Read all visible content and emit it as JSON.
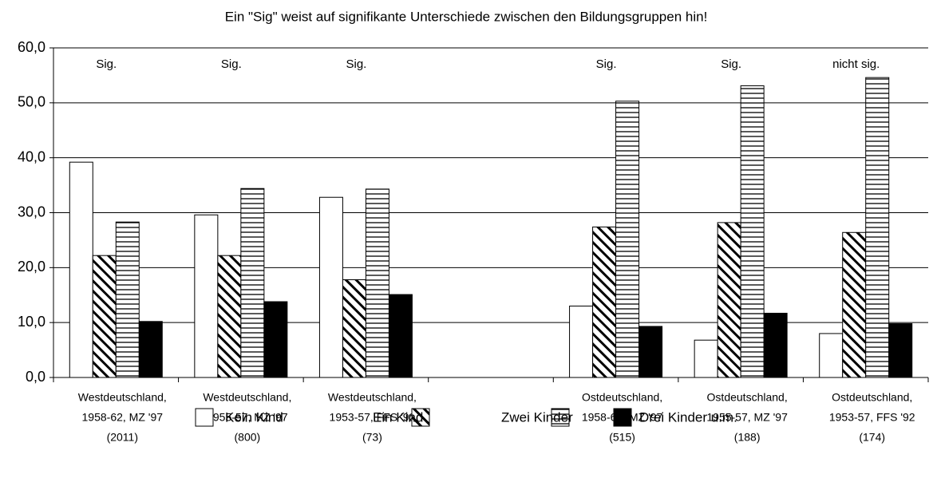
{
  "chart_data": {
    "type": "bar",
    "title": "Ein \"Sig\" weist auf signifikante Unterschiede zwischen den Bildungsgruppen hin!",
    "categories": [
      [
        "Westdeutschland,",
        "1958-62, MZ '97",
        "(2011)"
      ],
      [
        "Westdeutschland,",
        "1955-57, MZ '97",
        "(800)"
      ],
      [
        "Westdeutschland,",
        "1953-57, FFS '92",
        "(73)"
      ],
      null,
      [
        "Ostdeutschland,",
        "1958-62, MZ '97",
        "(515)"
      ],
      [
        "Ostdeutschland,",
        "1955-57, MZ '97",
        "(188)"
      ],
      [
        "Ostdeutschland,",
        "1953-57, FFS '92",
        "(174)"
      ]
    ],
    "annotations": [
      "Sig.",
      "Sig.",
      "Sig.",
      null,
      "Sig.",
      "Sig.",
      "nicht sig."
    ],
    "series": [
      {
        "name": "Kein Kind",
        "color": "#ffffff",
        "pattern": "solid",
        "values": [
          39.2,
          29.6,
          32.8,
          null,
          13.0,
          6.8,
          8.0
        ]
      },
      {
        "name": "Ein Kind",
        "color": "#000000",
        "pattern": "diagonal",
        "values": [
          22.2,
          22.2,
          17.8,
          null,
          27.4,
          28.2,
          26.4
        ]
      },
      {
        "name": "Zwei Kinder",
        "color": "#000000",
        "pattern": "horizontal",
        "values": [
          28.3,
          34.4,
          34.3,
          null,
          50.3,
          53.1,
          54.6
        ]
      },
      {
        "name": "Drei Kinder u.m.",
        "color": "#000000",
        "pattern": "solid",
        "values": [
          10.2,
          13.8,
          15.1,
          null,
          9.3,
          11.7,
          9.8
        ]
      }
    ],
    "ylim": [
      0,
      60
    ],
    "yticks": [
      {
        "value": 0,
        "label": "0,0"
      },
      {
        "value": 10,
        "label": "10,0"
      },
      {
        "value": 20,
        "label": "20,0"
      },
      {
        "value": 30,
        "label": "30,0"
      },
      {
        "value": 40,
        "label": "40,0"
      },
      {
        "value": 50,
        "label": "50,0"
      },
      {
        "value": 60,
        "label": "60,0"
      }
    ],
    "grid": true,
    "legend": "bottom"
  }
}
